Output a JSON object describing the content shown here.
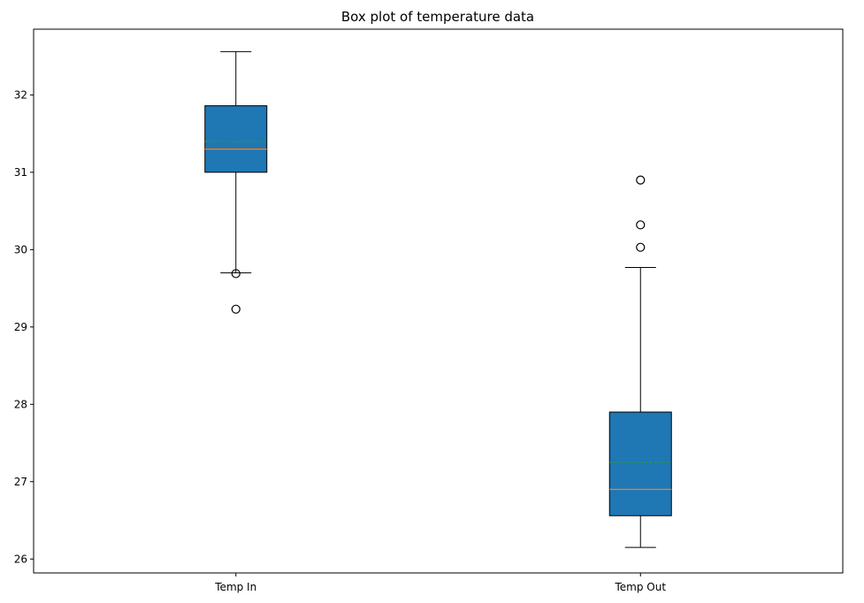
{
  "chart_data": {
    "type": "box",
    "title": "Box plot of temperature data",
    "xlabel": "",
    "ylabel": "",
    "categories": [
      "Temp In",
      "Temp Out"
    ],
    "ylim": [
      25.82,
      32.85
    ],
    "yticks": [
      26,
      27,
      28,
      29,
      30,
      31,
      32
    ],
    "ytick_labels": [
      "26",
      "27",
      "28",
      "29",
      "30",
      "31",
      "32"
    ],
    "grid": false,
    "show_means": true,
    "boxes": [
      {
        "name": "Temp In",
        "whisker_low": 29.7,
        "q1": 31.0,
        "median": 31.3,
        "mean": 31.4,
        "q3": 31.86,
        "whisker_high": 32.56,
        "outliers": [
          29.69,
          29.23
        ]
      },
      {
        "name": "Temp Out",
        "whisker_low": 26.15,
        "q1": 26.56,
        "median": 26.9,
        "mean": 27.25,
        "q3": 27.9,
        "whisker_high": 29.77,
        "outliers": [
          30.03,
          30.32,
          30.9
        ]
      }
    ],
    "colors": {
      "box_fill": "#1f77b4",
      "median": "#ff7f0e",
      "mean": "#2ca02c",
      "line": "#000000"
    }
  }
}
